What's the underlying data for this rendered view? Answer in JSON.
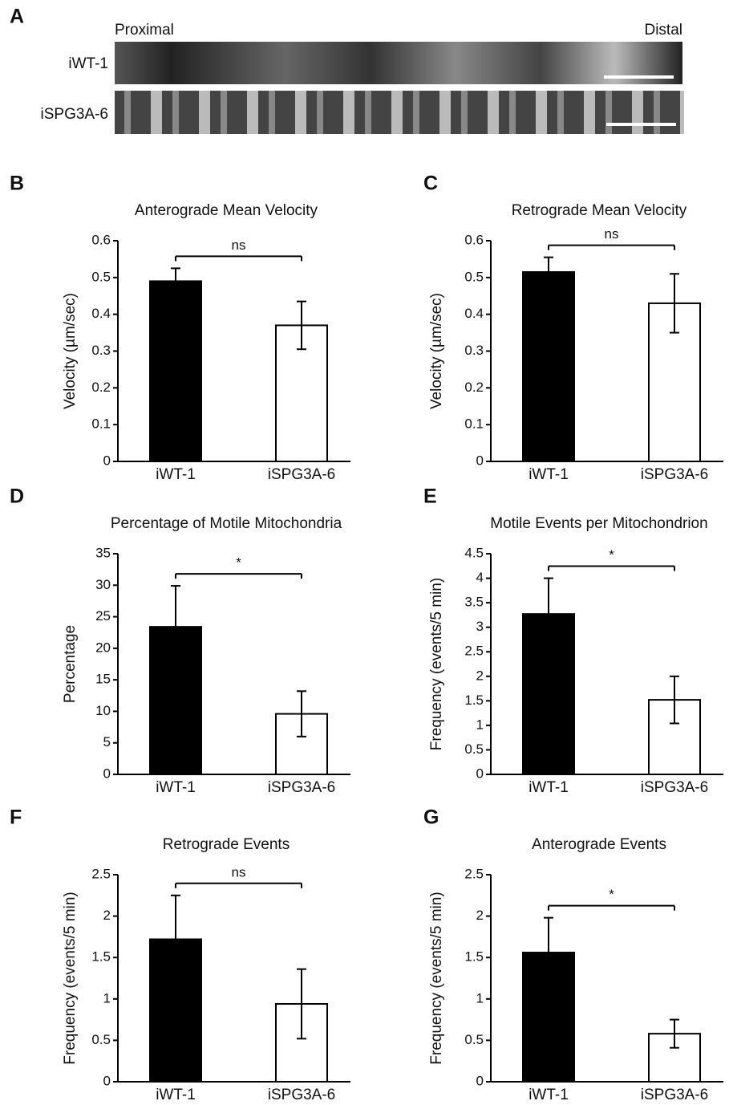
{
  "panel_a": {
    "label": "A",
    "proximal": "Proximal",
    "distal": "Distal",
    "rows": [
      "iWT-1",
      "iSPG3A-6"
    ]
  },
  "chart_data": [
    {
      "type": "bar",
      "panel": "B",
      "title": "Anterograde Mean Velocity",
      "ylabel": "Velocity (µm/sec)",
      "categories": [
        "iWT-1",
        "iSPG3A-6"
      ],
      "values": [
        0.49,
        0.37
      ],
      "errors": [
        0.035,
        0.065
      ],
      "colors": [
        "#000000",
        "#ffffff"
      ],
      "ylim": [
        0,
        0.6
      ],
      "yticks": [
        0,
        0.1,
        0.2,
        0.3,
        0.4,
        0.5,
        0.6
      ],
      "significance": "ns"
    },
    {
      "type": "bar",
      "panel": "C",
      "title": "Retrograde Mean Velocity",
      "ylabel": "Velocity (µm/sec)",
      "categories": [
        "iWT-1",
        "iSPG3A-6"
      ],
      "values": [
        0.515,
        0.43
      ],
      "errors": [
        0.04,
        0.08
      ],
      "colors": [
        "#000000",
        "#ffffff"
      ],
      "ylim": [
        0,
        0.6
      ],
      "yticks": [
        0,
        0.1,
        0.2,
        0.3,
        0.4,
        0.5,
        0.6
      ],
      "significance": "ns"
    },
    {
      "type": "bar",
      "panel": "D",
      "title": "Percentage of Motile Mitochondria",
      "ylabel": "Percentage",
      "categories": [
        "iWT-1",
        "iSPG3A-6"
      ],
      "values": [
        23.4,
        9.6
      ],
      "errors": [
        6.5,
        3.6
      ],
      "colors": [
        "#000000",
        "#ffffff"
      ],
      "ylim": [
        0,
        35
      ],
      "yticks": [
        0,
        5,
        10,
        15,
        20,
        25,
        30,
        35
      ],
      "significance": "*"
    },
    {
      "type": "bar",
      "panel": "E",
      "title": "Motile Events per Mitochondrion",
      "ylabel": "Frequency (events/5 min)",
      "categories": [
        "iWT-1",
        "iSPG3A-6"
      ],
      "values": [
        3.27,
        1.52
      ],
      "errors": [
        0.73,
        0.48
      ],
      "colors": [
        "#000000",
        "#ffffff"
      ],
      "ylim": [
        0,
        4.5
      ],
      "yticks": [
        0,
        0.5,
        1,
        1.5,
        2,
        2.5,
        3,
        3.5,
        4,
        4.5
      ],
      "significance": "*"
    },
    {
      "type": "bar",
      "panel": "F",
      "title": "Retrograde Events",
      "ylabel": "Frequency (events/5 min)",
      "categories": [
        "iWT-1",
        "iSPG3A-6"
      ],
      "values": [
        1.72,
        0.94
      ],
      "errors": [
        0.53,
        0.42
      ],
      "colors": [
        "#000000",
        "#ffffff"
      ],
      "ylim": [
        0,
        2.5
      ],
      "yticks": [
        0,
        0.5,
        1,
        1.5,
        2,
        2.5
      ],
      "significance": "ns"
    },
    {
      "type": "bar",
      "panel": "G",
      "title": "Anterograde Events",
      "ylabel": "Frequency (events/5 min)",
      "categories": [
        "iWT-1",
        "iSPG3A-6"
      ],
      "values": [
        1.56,
        0.58
      ],
      "errors": [
        0.42,
        0.17
      ],
      "colors": [
        "#000000",
        "#ffffff"
      ],
      "ylim": [
        0,
        2.5
      ],
      "yticks": [
        0,
        0.5,
        1,
        1.5,
        2,
        2.5
      ],
      "significance": "*"
    }
  ]
}
